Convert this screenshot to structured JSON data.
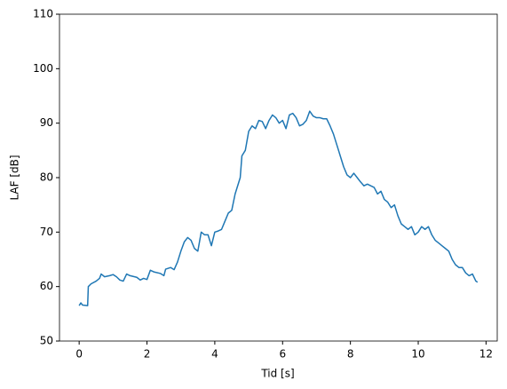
{
  "chart_data": {
    "type": "line",
    "xlabel": "Tid [s]",
    "ylabel": "LAF [dB]",
    "xlim": [
      -0.58,
      12.33
    ],
    "ylim": [
      50,
      110
    ],
    "xticks": [
      0,
      2,
      4,
      6,
      8,
      10,
      12
    ],
    "yticks": [
      50,
      60,
      70,
      80,
      90,
      100,
      110
    ],
    "x": [
      0,
      0.05,
      0.1,
      0.25,
      0.27,
      0.35,
      0.5,
      0.6,
      0.65,
      0.75,
      0.9,
      1.0,
      1.1,
      1.2,
      1.3,
      1.4,
      1.5,
      1.7,
      1.8,
      1.9,
      2.0,
      2.1,
      2.2,
      2.4,
      2.5,
      2.55,
      2.7,
      2.8,
      2.9,
      3.0,
      3.1,
      3.2,
      3.3,
      3.4,
      3.5,
      3.6,
      3.7,
      3.8,
      3.9,
      4.0,
      4.1,
      4.2,
      4.3,
      4.4,
      4.5,
      4.6,
      4.7,
      4.75,
      4.8,
      4.9,
      5.0,
      5.1,
      5.2,
      5.3,
      5.4,
      5.5,
      5.6,
      5.7,
      5.8,
      5.9,
      6.0,
      6.1,
      6.2,
      6.3,
      6.4,
      6.5,
      6.6,
      6.7,
      6.8,
      6.9,
      7.0,
      7.1,
      7.2,
      7.3,
      7.4,
      7.5,
      7.6,
      7.7,
      7.8,
      7.9,
      8.0,
      8.1,
      8.2,
      8.3,
      8.4,
      8.5,
      8.6,
      8.7,
      8.8,
      8.9,
      9.0,
      9.1,
      9.2,
      9.3,
      9.4,
      9.5,
      9.6,
      9.7,
      9.8,
      9.9,
      10.0,
      10.1,
      10.2,
      10.3,
      10.4,
      10.5,
      10.6,
      10.7,
      10.8,
      10.9,
      11.0,
      11.1,
      11.2,
      11.3,
      11.4,
      11.5,
      11.6,
      11.7,
      11.75
    ],
    "series": [
      {
        "color": "#1f77b4",
        "values": [
          56.5,
          57,
          56.6,
          56.5,
          60,
          60.5,
          61,
          61.5,
          62.3,
          61.8,
          62,
          62.2,
          61.8,
          61.2,
          61.0,
          62.3,
          62,
          61.7,
          61.2,
          61.5,
          61.3,
          63,
          62.7,
          62.4,
          62.0,
          63.2,
          63.5,
          63.1,
          64.5,
          66.5,
          68.2,
          69,
          68.5,
          67,
          66.5,
          70,
          69.5,
          69.5,
          67.5,
          70,
          70.2,
          70.5,
          72,
          73.5,
          74,
          77,
          79,
          80,
          84,
          85,
          88.5,
          89.5,
          89,
          90.5,
          90.3,
          89,
          90.5,
          91.5,
          91,
          90,
          90.5,
          89,
          91.5,
          91.8,
          91,
          89.5,
          89.8,
          90.5,
          92.2,
          91.3,
          91,
          91,
          90.8,
          90.8,
          89.5,
          88,
          86,
          84,
          82,
          80.5,
          80,
          80.8,
          80,
          79.2,
          78.5,
          78.8,
          78.5,
          78.2,
          77,
          77.5,
          76,
          75.5,
          74.5,
          75,
          73,
          71.5,
          71,
          70.5,
          71,
          69.5,
          70,
          71,
          70.5,
          71,
          69.5,
          68.5,
          68,
          67.5,
          67,
          66.5,
          65,
          64,
          63.5,
          63.5,
          62.5,
          62,
          62.3,
          61,
          60.8
        ]
      }
    ]
  }
}
